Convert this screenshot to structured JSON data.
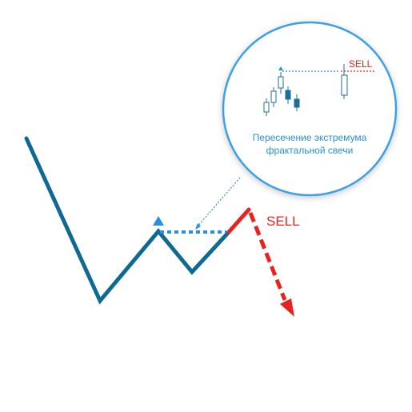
{
  "main_signal": {
    "label": "SELL"
  },
  "zoom_callout": {
    "signal_label": "SELL",
    "caption_line1": "Пересечение экстремума",
    "caption_line2": "фрактальной свечи"
  },
  "colors": {
    "price_line": "#0f6a93",
    "breakdown": "#e8231f",
    "fractal_level": "#2a8fe0",
    "callout_border": "#3aa0e6",
    "candle": "#1c6f98"
  }
}
